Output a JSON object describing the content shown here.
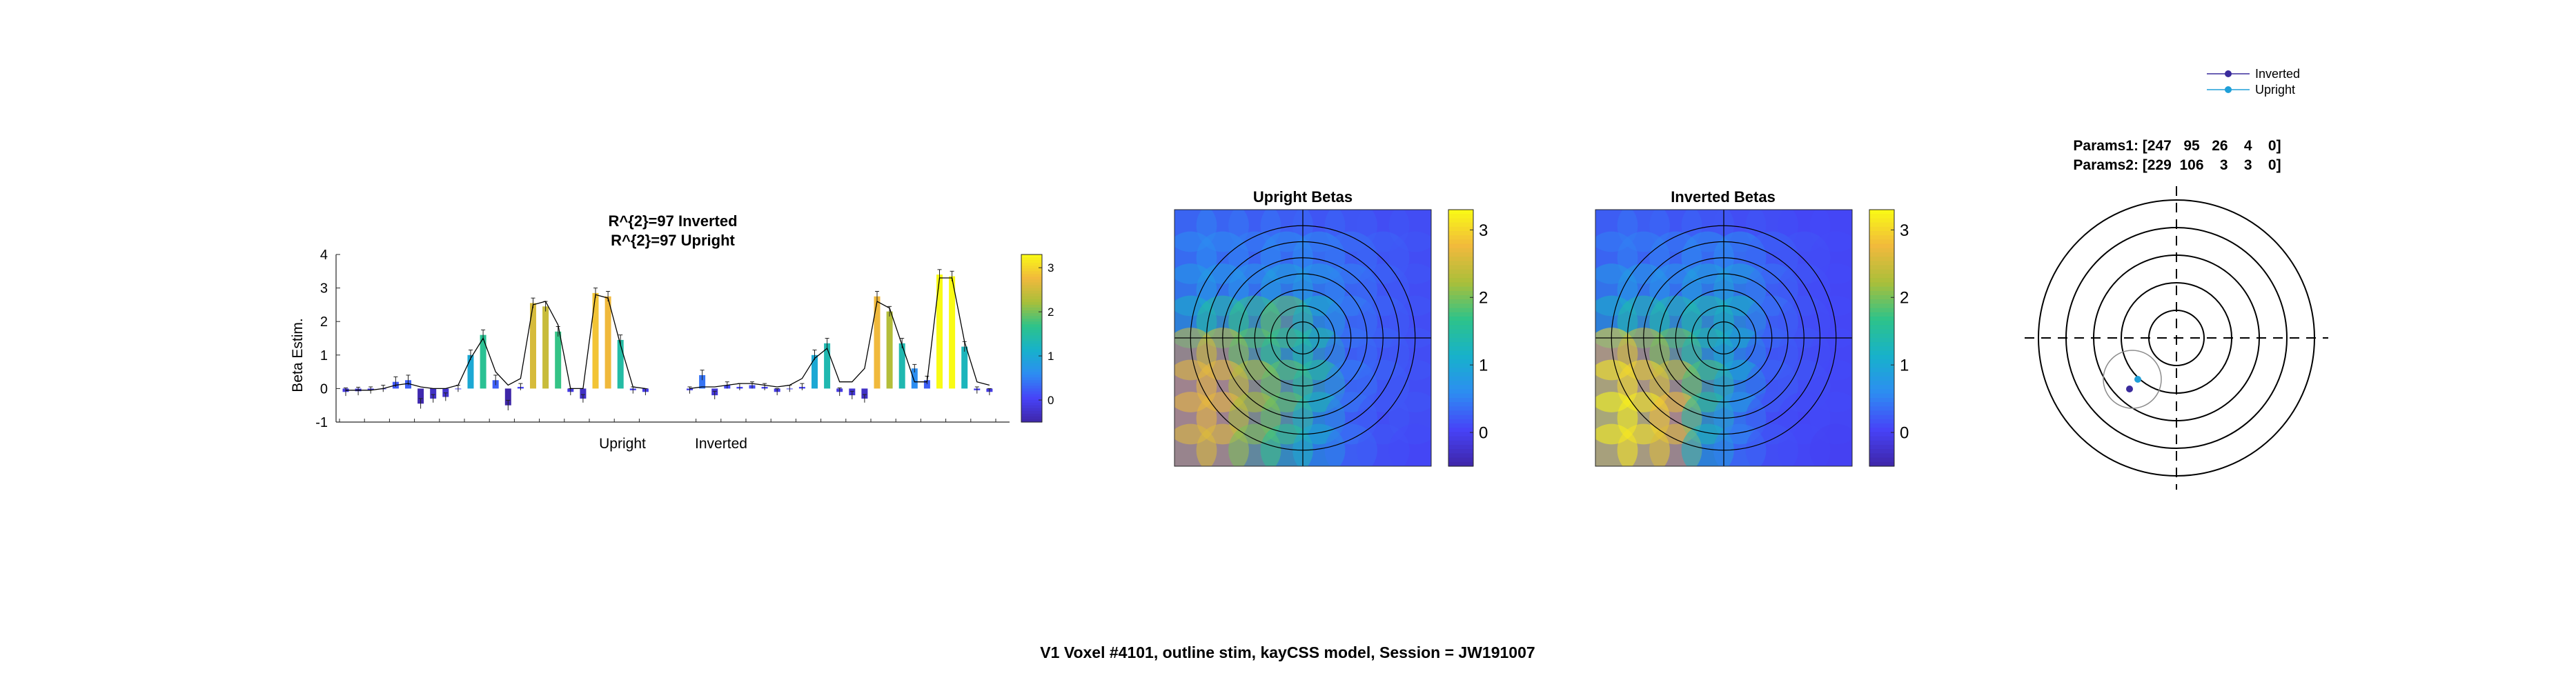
{
  "figure_title": "V1 Voxel #4101, outline stim, kayCSS model, Session = JW191007",
  "colors": {
    "parula": [
      "#3e26a8",
      "#4743f8",
      "#2d8df2",
      "#17b1cb",
      "#2dc38a",
      "#a9bf3a",
      "#f1b93c",
      "#f9fb15"
    ],
    "model_line": "#000000",
    "inverted_marker": "#3a2b9c",
    "upright_marker": "#1f9fd8"
  },
  "chart_data": [
    {
      "type": "bar",
      "title_lines": [
        "R^{2}=97 Inverted",
        "R^{2}=97 Upright"
      ],
      "ylabel": "Beta Estim.",
      "xtick_labels": [
        "Upright",
        "Inverted"
      ],
      "ylim": [
        -1,
        4
      ],
      "yticks": [
        -1,
        0,
        1,
        2,
        3,
        4
      ],
      "grid": false,
      "groups": [
        {
          "name": "Upright",
          "values": [
            -0.1,
            -0.08,
            -0.05,
            0.0,
            0.2,
            0.25,
            -0.45,
            -0.3,
            -0.25,
            0.0,
            1.0,
            1.6,
            0.25,
            -0.5,
            0.05,
            2.55,
            2.45,
            1.7,
            -0.1,
            -0.3,
            2.85,
            2.75,
            1.45,
            -0.05,
            -0.1
          ],
          "errors": [
            0.12,
            0.12,
            0.1,
            0.1,
            0.15,
            0.15,
            0.15,
            0.12,
            0.12,
            0.1,
            0.15,
            0.15,
            0.15,
            0.15,
            0.1,
            0.15,
            0.15,
            0.15,
            0.1,
            0.12,
            0.15,
            0.15,
            0.15,
            0.1,
            0.1
          ],
          "model": [
            -0.05,
            -0.05,
            -0.05,
            0.0,
            0.1,
            0.15,
            0.05,
            0.0,
            0.0,
            0.1,
            0.9,
            1.5,
            0.5,
            0.1,
            0.3,
            2.5,
            2.6,
            1.9,
            0.0,
            0.0,
            2.8,
            2.7,
            1.3,
            0.05,
            0.0
          ]
        },
        {
          "name": "Inverted",
          "values": [
            -0.05,
            0.4,
            -0.2,
            0.1,
            0.05,
            0.1,
            0.05,
            -0.1,
            0.0,
            0.05,
            1.0,
            1.35,
            -0.1,
            -0.2,
            -0.3,
            2.75,
            2.3,
            1.35,
            0.6,
            0.25,
            3.4,
            3.35,
            1.25,
            -0.05,
            -0.1
          ],
          "errors": [
            0.1,
            0.15,
            0.12,
            0.1,
            0.1,
            0.1,
            0.1,
            0.1,
            0.1,
            0.1,
            0.15,
            0.15,
            0.12,
            0.12,
            0.12,
            0.15,
            0.15,
            0.15,
            0.12,
            0.12,
            0.15,
            0.15,
            0.15,
            0.1,
            0.1
          ],
          "model": [
            0.0,
            0.05,
            0.05,
            0.1,
            0.15,
            0.15,
            0.1,
            0.05,
            0.1,
            0.3,
            0.9,
            1.2,
            0.2,
            0.2,
            0.6,
            2.6,
            2.4,
            1.3,
            0.2,
            0.2,
            3.3,
            3.3,
            1.4,
            0.2,
            0.1
          ]
        }
      ],
      "colorbar": {
        "clim": [
          -0.5,
          3.3
        ],
        "ticks": [
          0,
          1,
          2,
          3
        ]
      }
    },
    {
      "type": "heatmap",
      "title": "Upright Betas",
      "grid_size": 8,
      "values": [
        [
          0.5,
          0.5,
          0.4,
          0.4,
          0.3,
          0.3,
          0.2,
          0.2
        ],
        [
          0.6,
          0.6,
          0.5,
          0.6,
          0.6,
          0.4,
          0.3,
          0.2
        ],
        [
          0.8,
          0.8,
          0.7,
          0.9,
          0.8,
          0.5,
          0.3,
          0.2
        ],
        [
          1.2,
          1.5,
          1.7,
          1.9,
          1.2,
          0.5,
          0.3,
          0.2
        ],
        [
          2.5,
          2.5,
          1.9,
          1.6,
          1.4,
          0.4,
          0.3,
          0.2
        ],
        [
          2.7,
          2.7,
          2.3,
          1.9,
          1.5,
          0.5,
          0.3,
          0.2
        ],
        [
          2.7,
          2.7,
          2.2,
          1.9,
          1.2,
          0.4,
          0.2,
          0.2
        ],
        [
          2.6,
          2.6,
          2.0,
          1.6,
          1.0,
          0.4,
          0.2,
          0.1
        ]
      ],
      "colorbar": {
        "clim": [
          -0.5,
          3.3
        ],
        "ticks": [
          0,
          1,
          2,
          3
        ]
      }
    },
    {
      "type": "heatmap",
      "title": "Inverted Betas",
      "grid_size": 8,
      "values": [
        [
          0.4,
          0.4,
          0.3,
          0.3,
          0.2,
          0.2,
          0.1,
          0.1
        ],
        [
          0.5,
          0.5,
          0.5,
          0.6,
          0.6,
          0.3,
          0.2,
          0.1
        ],
        [
          0.8,
          0.8,
          0.7,
          0.9,
          0.9,
          0.4,
          0.2,
          0.1
        ],
        [
          1.2,
          1.4,
          1.4,
          1.4,
          1.2,
          0.4,
          0.2,
          0.1
        ],
        [
          3.0,
          2.5,
          2.0,
          1.4,
          1.0,
          0.3,
          0.2,
          0.1
        ],
        [
          3.2,
          3.0,
          2.5,
          1.8,
          1.0,
          0.3,
          0.2,
          0.1
        ],
        [
          3.3,
          3.2,
          2.8,
          1.5,
          0.7,
          0.2,
          0.1,
          0.1
        ],
        [
          3.2,
          3.1,
          2.6,
          1.2,
          0.5,
          0.2,
          0.1,
          0.0
        ]
      ],
      "colorbar": {
        "clim": [
          -0.5,
          3.3
        ],
        "ticks": [
          0,
          1,
          2,
          3
        ]
      }
    },
    {
      "type": "scatter",
      "title_lines": [
        "Params1: [247   95   26    4    0]",
        "Params2: [229  106    3    3    0]"
      ],
      "legend": [
        "Inverted",
        "Upright"
      ],
      "legend_position": "top-right",
      "num_rings": 5,
      "points": [
        {
          "name": "Inverted",
          "x": -1.7,
          "y": -1.85
        },
        {
          "name": "Upright",
          "x": -1.4,
          "y": -1.5
        }
      ],
      "prf_circle": {
        "cx": -1.6,
        "cy": -1.5,
        "r": 1.05
      }
    }
  ]
}
